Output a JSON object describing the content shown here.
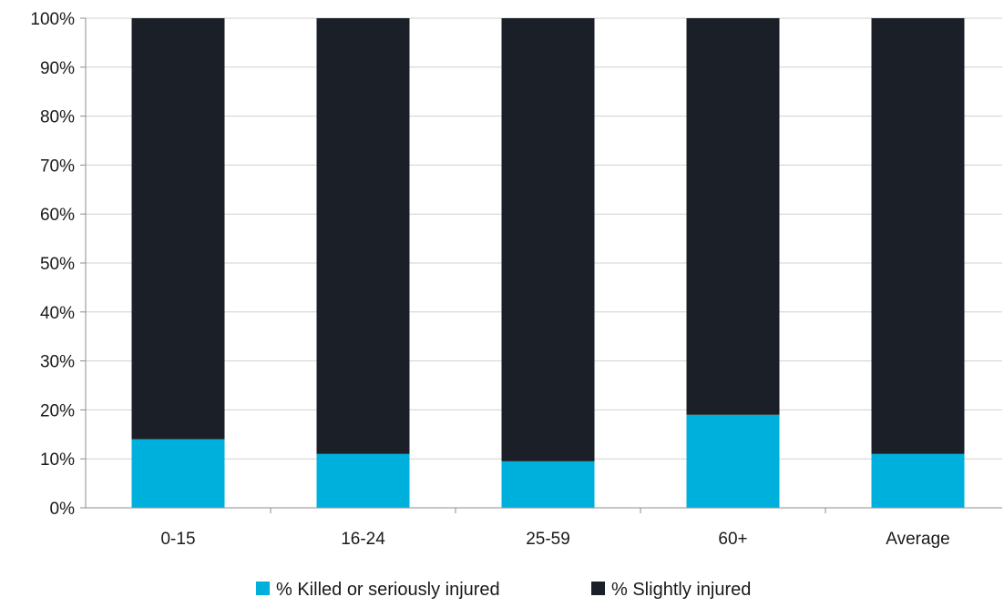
{
  "chart_data": {
    "type": "bar",
    "stacked": true,
    "percent_stacked": true,
    "categories": [
      "0-15",
      "16-24",
      "25-59",
      "60+",
      "Average"
    ],
    "series": [
      {
        "name": "% Killed or seriously injured",
        "color": "#00b0dc",
        "values": [
          14,
          11,
          9.5,
          19,
          11
        ]
      },
      {
        "name": "% Slightly injured",
        "color": "#1b1f27",
        "values": [
          86,
          89,
          90.5,
          81,
          89
        ]
      }
    ],
    "ylim": [
      0,
      100
    ],
    "yticks": [
      "0%",
      "10%",
      "20%",
      "30%",
      "40%",
      "50%",
      "60%",
      "70%",
      "80%",
      "90%",
      "100%"
    ],
    "grid": true,
    "legend_position": "bottom"
  }
}
